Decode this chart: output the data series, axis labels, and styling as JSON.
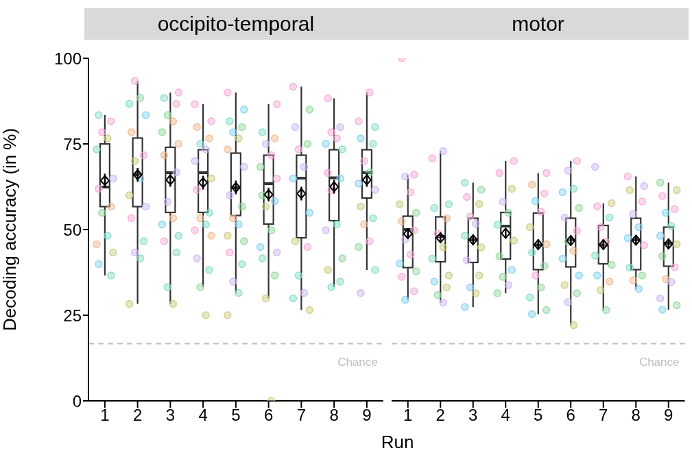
{
  "chart_data": [
    {
      "type": "box",
      "title": "occipito-temporal",
      "xlabel": "Run",
      "ylabel": "Decoding accuracy (in %)",
      "categories": [
        "1",
        "2",
        "3",
        "4",
        "5",
        "6",
        "7",
        "8",
        "9"
      ],
      "ylim": [
        0,
        100
      ],
      "yticks": [
        0,
        25,
        50,
        75,
        100
      ],
      "boxes": [
        {
          "low": 36.6,
          "q1": 56.7,
          "median": 62.4,
          "q3": 75,
          "high": 83.4
        },
        {
          "low": 28.3,
          "q1": 56.7,
          "median": 66,
          "q3": 76.7,
          "high": 93.4
        },
        {
          "low": 28.3,
          "q1": 55,
          "median": 66.6,
          "q3": 74,
          "high": 90
        },
        {
          "low": 33.2,
          "q1": 55,
          "median": 66.6,
          "q3": 73.3,
          "high": 86.6
        },
        {
          "low": 31.5,
          "q1": 54.1,
          "median": 62.2,
          "q3": 72.3,
          "high": 90
        },
        {
          "low": 29.9,
          "q1": 51.6,
          "median": 63.4,
          "q3": 71.7,
          "high": 86.6
        },
        {
          "low": 26.5,
          "q1": 47.6,
          "median": 65,
          "q3": 71.7,
          "high": 91.7
        },
        {
          "low": 33.2,
          "q1": 52.6,
          "median": 65.1,
          "q3": 73.3,
          "high": 88.3
        },
        {
          "low": 38.2,
          "q1": 59.2,
          "median": 66.6,
          "q3": 73.3,
          "high": 90
        }
      ],
      "series": [
        {
          "type": "scatter",
          "x": [
            "1",
            "1",
            "1",
            "1",
            "1",
            "1",
            "1",
            "1",
            "1",
            "1",
            "1",
            "1",
            "1",
            "1",
            "2",
            "2",
            "2",
            "2",
            "2",
            "2",
            "2",
            "2",
            "2",
            "2",
            "2",
            "2",
            "2",
            "2",
            "2",
            "3",
            "3",
            "3",
            "3",
            "3",
            "3",
            "3",
            "3",
            "3",
            "3",
            "3",
            "3",
            "3",
            "3",
            "3",
            "3",
            "3",
            "4",
            "4",
            "4",
            "4",
            "4",
            "4",
            "4",
            "4",
            "4",
            "4",
            "4",
            "4",
            "4",
            "4",
            "4",
            "4",
            "4",
            "4",
            "5",
            "5",
            "5",
            "5",
            "5",
            "5",
            "5",
            "5",
            "5",
            "5",
            "5",
            "5",
            "5",
            "5",
            "5",
            "5",
            "5",
            "5",
            "5",
            "6",
            "6",
            "6",
            "6",
            "6",
            "6",
            "6",
            "6",
            "6",
            "6",
            "6",
            "6",
            "6",
            "6",
            "6",
            "6",
            "6",
            "7",
            "7",
            "7",
            "7",
            "7",
            "7",
            "7",
            "7",
            "7",
            "7",
            "7",
            "7",
            "7",
            "7",
            "8",
            "8",
            "8",
            "8",
            "8",
            "8",
            "8",
            "8",
            "8",
            "8",
            "8",
            "8",
            "8",
            "8",
            "8",
            "9",
            "9",
            "9",
            "9",
            "9",
            "9",
            "9",
            "9",
            "9",
            "9",
            "9",
            "9",
            "9",
            "9",
            "9",
            "9"
          ],
          "values": [
            83.4,
            81.6,
            78.4,
            76.6,
            73.4,
            64.9,
            61.9,
            56.7,
            54.9,
            48.2,
            45.7,
            43.3,
            39.9,
            36.6,
            93.4,
            88.4,
            86.7,
            83.4,
            78.4,
            71.7,
            70,
            64.9,
            60,
            56.7,
            53.3,
            46.6,
            43.3,
            41.6,
            28.3,
            90,
            88.4,
            86.7,
            83.4,
            81.6,
            78.4,
            75,
            71.7,
            66.7,
            58.1,
            53.3,
            51.5,
            48.2,
            46.6,
            43.3,
            33.2,
            28.3,
            86.6,
            81.6,
            79.9,
            76.6,
            75,
            73.4,
            70,
            64.9,
            61.6,
            54.9,
            53.3,
            51.5,
            49.8,
            48.2,
            41.6,
            38.2,
            33.2,
            25,
            90,
            85,
            81.6,
            79.9,
            78.4,
            76.6,
            73.4,
            68.3,
            60,
            56.7,
            53.3,
            51.5,
            48.2,
            46.6,
            43.3,
            39.9,
            34.8,
            31.5,
            25,
            86.6,
            78.4,
            76.6,
            75,
            71.7,
            68.3,
            64.9,
            60,
            58.3,
            56.7,
            49.8,
            44.9,
            43.3,
            41.6,
            36.6,
            29.9,
            0,
            91.7,
            85,
            79.9,
            75,
            73.4,
            68.3,
            64.9,
            54.9,
            46.6,
            44.9,
            36.6,
            31.5,
            29.9,
            26.5,
            88.3,
            79.9,
            78.4,
            76.6,
            75,
            73.4,
            66.5,
            64.9,
            61.6,
            51.5,
            49.8,
            41.6,
            38.2,
            34.8,
            33.2,
            90,
            81.6,
            79.9,
            76.6,
            75,
            70,
            66.7,
            63.4,
            61.6,
            56.7,
            53.3,
            51.5,
            46.6,
            44.9,
            38.2,
            31.5
          ],
          "colors": [
            "#7fdcc8",
            "#f7a6d6",
            "#f7a6d6",
            "#c9c97d",
            "#7fdcc8",
            "#cdb4f5",
            "#f7a6d6",
            "#f0b68a",
            "#8fd89a",
            "#7fdcc8",
            "#f0b68a",
            "#c9c97d",
            "#7fd0f3",
            "#7fdcc8",
            "#f7a6d6",
            "#8fd89a",
            "#7fdcc8",
            "#7fd0f3",
            "#f0b68a",
            "#f7a6d6",
            "#c9c97d",
            "#7fd0f3",
            "#c9c97d",
            "#cdb4f5",
            "#f7a6d6",
            "#7fdcc8",
            "#cdb4f5",
            "#7fdcc8",
            "#c9c97d",
            "#f7a6d6",
            "#7fdcc8",
            "#f7a6d6",
            "#8fd89a",
            "#f0b68a",
            "#8fd89a",
            "#f0b68a",
            "#f0b68a",
            "#cdb4f5",
            "#cdb4f5",
            "#f0b68a",
            "#7fd0f3",
            "#7fdcc8",
            "#f7a6d6",
            "#7fdcc8",
            "#7fdcc8",
            "#c9c97d",
            "#f7a6d6",
            "#f7a6d6",
            "#f0b68a",
            "#f0b68a",
            "#7fdcc8",
            "#cdb4f5",
            "#cdb4f5",
            "#c9c97d",
            "#f7a6d6",
            "#7fdcc8",
            "#f0b68a",
            "#7fdcc8",
            "#f7a6d6",
            "#f0b68a",
            "#cdb4f5",
            "#7fdcc8",
            "#8fd89a",
            "#c9c97d",
            "#f7a6d6",
            "#7fd0f3",
            "#7fdcc8",
            "#8fd89a",
            "#7fd0f3",
            "#c9c97d",
            "#f0b68a",
            "#cdb4f5",
            "#cdb4f5",
            "#8fd89a",
            "#f0b68a",
            "#7fd0f3",
            "#c9c97d",
            "#8fd89a",
            "#f7a6d6",
            "#7fdcc8",
            "#cdb4f5",
            "#7fdcc8",
            "#c9c97d",
            "#f7a6d6",
            "#7fdcc8",
            "#f0b68a",
            "#cdb4f5",
            "#f7a6d6",
            "#8fd89a",
            "#f7a6d6",
            "#8fd89a",
            "#7fd0f3",
            "#c9c97d",
            "#8fd89a",
            "#7fd0f3",
            "#cdb4f5",
            "#7fdcc8",
            "#8fd89a",
            "#c9c97d",
            "#c9c97d",
            "#f7a6d6",
            "#8fd89a",
            "#cdb4f5",
            "#8fd89a",
            "#f7a6d6",
            "#cdb4f5",
            "#7fd0f3",
            "#7fd0f3",
            "#c9c97d",
            "#f7a6d6",
            "#7fdcc8",
            "#cdb4f5",
            "#7fdcc8",
            "#c9c97d",
            "#f7a6d6",
            "#cdb4f5",
            "#f7a6d6",
            "#f7a6d6",
            "#7fd0f3",
            "#7fdcc8",
            "#f7a6d6",
            "#7fd0f3",
            "#f7a6d6",
            "#7fdcc8",
            "#cdb4f5",
            "#8fd89a",
            "#c9c97d",
            "#7fdcc8",
            "#7fdcc8",
            "#f7a6d6",
            "#f7a6d6",
            "#7fdcc8",
            "#7fd0f3",
            "#7fdcc8",
            "#f7a6d6",
            "#8fd89a",
            "#7fd0f3",
            "#cdb4f5",
            "#c9c97d",
            "#7fdcc8",
            "#f0b68a",
            "#f7a6d6",
            "#8fd89a",
            "#7fdcc8",
            "#cdb4f5"
          ]
        },
        {
          "type": "scatter",
          "marker": "diamond",
          "color": "#000000",
          "x": [
            "1",
            "2",
            "3",
            "4",
            "5",
            "6",
            "7",
            "8",
            "9"
          ],
          "values": [
            64.3,
            66,
            64.5,
            63.7,
            62.3,
            60.2,
            60.5,
            62.5,
            64.5
          ],
          "errors": [
            2,
            2,
            2,
            2,
            2,
            2,
            2,
            2,
            2
          ]
        }
      ],
      "ref_lines": [
        {
          "axis": "y",
          "value": 16.7,
          "label": "Chance",
          "color": "#bdbdbd",
          "line_style": "dashed"
        }
      ]
    },
    {
      "type": "box",
      "title": "motor",
      "categories": [
        "1",
        "2",
        "3",
        "4",
        "5",
        "6",
        "7",
        "8",
        "9"
      ],
      "ylim": [
        0,
        100
      ],
      "tick_labels": "x",
      "boxes": [
        {
          "low": 29.5,
          "q1": 38.9,
          "median": 50,
          "q3": 53.9,
          "high": 66
        },
        {
          "low": 28.7,
          "q1": 40.6,
          "median": 48,
          "q3": 53.7,
          "high": 72.9
        },
        {
          "low": 27.4,
          "q1": 40.4,
          "median": 47,
          "q3": 53.3,
          "high": 63.7
        },
        {
          "low": 31.4,
          "q1": 41.4,
          "median": 51,
          "q3": 55,
          "high": 70
        },
        {
          "low": 25.3,
          "q1": 38.3,
          "median": 45.5,
          "q3": 54.8,
          "high": 66.5
        },
        {
          "low": 22.1,
          "q1": 39.1,
          "median": 47,
          "q3": 53.3,
          "high": 70
        },
        {
          "low": 26.5,
          "q1": 40,
          "median": 45.5,
          "q3": 51.2,
          "high": 57.7
        },
        {
          "low": 32.7,
          "q1": 38.3,
          "median": 47,
          "q3": 53.3,
          "high": 65.5
        },
        {
          "low": 26.6,
          "q1": 39.3,
          "median": 46,
          "q3": 50.7,
          "high": 63.7
        }
      ],
      "series": [
        {
          "type": "scatter",
          "x": [
            "1",
            "1",
            "1",
            "1",
            "1",
            "1",
            "1",
            "1",
            "1",
            "1",
            "1",
            "1",
            "1",
            "1",
            "1",
            "2",
            "2",
            "2",
            "2",
            "2",
            "2",
            "2",
            "2",
            "2",
            "2",
            "2",
            "2",
            "2",
            "3",
            "3",
            "3",
            "3",
            "3",
            "3",
            "3",
            "3",
            "3",
            "3",
            "3",
            "3",
            "3",
            "4",
            "4",
            "4",
            "4",
            "4",
            "4",
            "4",
            "4",
            "4",
            "4",
            "4",
            "4",
            "5",
            "5",
            "5",
            "5",
            "5",
            "5",
            "5",
            "5",
            "5",
            "5",
            "5",
            "5",
            "5",
            "5",
            "6",
            "6",
            "6",
            "6",
            "6",
            "6",
            "6",
            "6",
            "6",
            "6",
            "6",
            "6",
            "6",
            "6",
            "6",
            "7",
            "7",
            "7",
            "7",
            "7",
            "7",
            "7",
            "7",
            "7",
            "7",
            "7",
            "7",
            "8",
            "8",
            "8",
            "8",
            "8",
            "8",
            "8",
            "8",
            "8",
            "8",
            "8",
            "8",
            "9",
            "9",
            "9",
            "9",
            "9",
            "9",
            "9",
            "9",
            "9",
            "9",
            "9",
            "9",
            "9",
            "9",
            "9"
          ],
          "values": [
            100,
            66,
            65.5,
            60.9,
            57.4,
            54.9,
            52.4,
            49.8,
            47.1,
            42.7,
            40.1,
            37.8,
            36.2,
            32,
            29.5,
            72.9,
            70.8,
            57.4,
            56.3,
            53.3,
            48.9,
            44.8,
            41.5,
            36.6,
            34.8,
            33.1,
            30.9,
            28.7,
            63.7,
            61.6,
            59.5,
            57.5,
            53.8,
            51.7,
            48.2,
            44.8,
            41,
            36.6,
            33.1,
            31.4,
            27.4,
            70,
            66.5,
            61.9,
            58.1,
            54.9,
            51.4,
            46.8,
            42.2,
            38.2,
            36.2,
            33.8,
            31.4,
            66.5,
            63.1,
            60.5,
            58.3,
            55.2,
            50.7,
            45.7,
            43.3,
            39.4,
            36.6,
            33.1,
            30.2,
            26.5,
            25.3,
            70,
            67.2,
            61.9,
            60.9,
            56.3,
            53.5,
            49.6,
            46.4,
            43.8,
            41.5,
            36.6,
            33.8,
            31.4,
            28.8,
            22.1,
            68.3,
            57.7,
            56.8,
            53.5,
            50.7,
            46.4,
            42.4,
            39.7,
            36.6,
            34.8,
            32.3,
            26.5,
            65.5,
            62.7,
            61.5,
            58.2,
            54.5,
            50.7,
            47.5,
            45.4,
            38.9,
            36.6,
            35.2,
            32.7,
            63.7,
            61.5,
            59.8,
            56,
            54.9,
            51,
            48.2,
            45.7,
            42.2,
            39,
            35.5,
            34.7,
            29.9,
            27.9,
            26.6
          ],
          "colors": [
            "#f7a6d6",
            "#f7a6d6",
            "#cdb4f5",
            "#f7a6d6",
            "#c9c97d",
            "#8fd89a",
            "#f0b68a",
            "#f7a6d6",
            "#cdb4f5",
            "#f7a6d6",
            "#7fd0f3",
            "#8fd89a",
            "#f7a6d6",
            "#f7a6d6",
            "#7fd0f3",
            "#cdb4f5",
            "#f7a6d6",
            "#7fdcc8",
            "#7fdcc8",
            "#f0b68a",
            "#f7a6d6",
            "#c9c97d",
            "#7fdcc8",
            "#c9c97d",
            "#7fd0f3",
            "#c9c97d",
            "#8fd89a",
            "#cdb4f5",
            "#7fdcc8",
            "#8fd89a",
            "#f7a6d6",
            "#c9c97d",
            "#f7a6d6",
            "#cdb4f5",
            "#7fdcc8",
            "#c9c97d",
            "#cdb4f5",
            "#c9c97d",
            "#7fd0f3",
            "#c9c97d",
            "#7fd0f3",
            "#f7a6d6",
            "#f7a6d6",
            "#c9c97d",
            "#cdb4f5",
            "#8fd89a",
            "#7fdcc8",
            "#c9c97d",
            "#8fd89a",
            "#7fd0f3",
            "#8fd89a",
            "#cdb4f5",
            "#8fd89a",
            "#f7a6d6",
            "#f0b68a",
            "#f7a6d6",
            "#7fd0f3",
            "#f7a6d6",
            "#c9c97d",
            "#f0b68a",
            "#7fdcc8",
            "#8fd89a",
            "#f7a6d6",
            "#8fd89a",
            "#7fdcc8",
            "#8fd89a",
            "#7fd0f3",
            "#f7a6d6",
            "#cdb4f5",
            "#7fdcc8",
            "#7fd0f3",
            "#8fd89a",
            "#cdb4f5",
            "#f7a6d6",
            "#8fd89a",
            "#f0b68a",
            "#7fd0f3",
            "#7fd0f3",
            "#c9c97d",
            "#8fd89a",
            "#cdb4f5",
            "#c9c97d",
            "#cdb4f5",
            "#c9c97d",
            "#f7a6d6",
            "#7fdcc8",
            "#f7a6d6",
            "#f7a6d6",
            "#7fdcc8",
            "#8fd89a",
            "#7fd0f3",
            "#f0b68a",
            "#c9c97d",
            "#8fd89a",
            "#f7a6d6",
            "#cdb4f5",
            "#c9c97d",
            "#f7a6d6",
            "#cdb4f5",
            "#7fd0f3",
            "#7fd0f3",
            "#f7a6d6",
            "#7fdcc8",
            "#8fd89a",
            "#f0b68a",
            "#7fd0f3",
            "#8fd89a",
            "#c9c97d",
            "#f7a6d6",
            "#f7a6d6",
            "#7fd0f3",
            "#7fdcc8",
            "#7fd0f3",
            "#c9c97d",
            "#8fd89a",
            "#f7a6d6",
            "#f0b68a",
            "#cdb4f5",
            "#cdb4f5",
            "#8fd89a",
            "#7fd0f3"
          ]
        },
        {
          "type": "scatter",
          "marker": "diamond",
          "color": "#000000",
          "x": [
            "1",
            "2",
            "3",
            "4",
            "5",
            "6",
            "7",
            "8",
            "9"
          ],
          "values": [
            48.8,
            47.6,
            47,
            48.9,
            45.6,
            46.8,
            45.6,
            46.9,
            45.8
          ],
          "errors": [
            1.5,
            1.5,
            1.5,
            1.5,
            1.5,
            1.5,
            1.5,
            1.5,
            1.5
          ]
        }
      ],
      "ref_lines": [
        {
          "axis": "y",
          "value": 16.7,
          "label": "Chance",
          "color": "#bdbdbd",
          "line_style": "dashed"
        }
      ]
    }
  ]
}
